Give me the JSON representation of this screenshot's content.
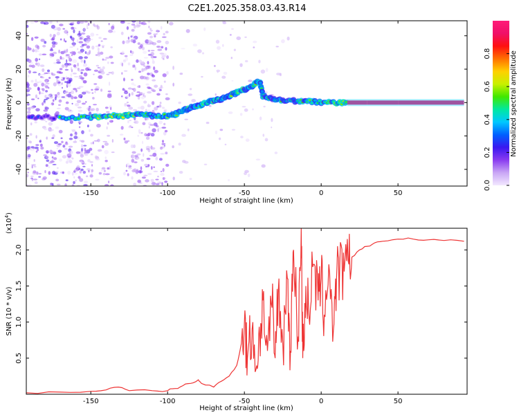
{
  "title": "C2E1.2025.358.03.43.R14",
  "chart_data": [
    {
      "type": "heatmap",
      "xlabel": "Height of straight line (km)",
      "ylabel": "Frequency (Hz)",
      "xlim": [
        -192,
        95
      ],
      "ylim": [
        -50,
        49
      ],
      "xticks": [
        -150,
        -100,
        -50,
        0,
        50
      ],
      "yticks": [
        -40,
        -20,
        0,
        20,
        40
      ],
      "colorbar": {
        "label": "Normalized spectral amplitude",
        "range": [
          0.0,
          1.0
        ],
        "ticks": [
          "0.0",
          "0.2",
          "0.4",
          "0.6",
          "0.8"
        ],
        "ticks_values": [
          0.0,
          0.2,
          0.4,
          0.6,
          0.8
        ],
        "colors": [
          "#f2e8ff",
          "#c9a6f5",
          "#8a3cf0",
          "#3a18f0",
          "#0060ff",
          "#00c8ff",
          "#00e8a0",
          "#40e800",
          "#c8f000",
          "#ffd000",
          "#ff7000",
          "#ff1010",
          "#f01068",
          "#ff1c78"
        ]
      },
      "ridge": {
        "x": [
          -190,
          -170,
          -150,
          -140,
          -130,
          -120,
          -110,
          -100,
          -95,
          -90,
          -85,
          -80,
          -75,
          -70,
          -65,
          -60,
          -55,
          -50,
          -45,
          -40,
          -38,
          -30,
          -20,
          -10,
          0,
          10,
          17,
          30,
          50,
          70,
          93
        ],
        "y": [
          -9,
          -9,
          -9,
          -8,
          -8,
          -7,
          -8,
          -8,
          -7,
          -5,
          -3,
          -2,
          0,
          1,
          2,
          4,
          6,
          8,
          10,
          13,
          4,
          2,
          1,
          1,
          0,
          0,
          0,
          0,
          0,
          0,
          0
        ],
        "amplitude": [
          0.25,
          0.45,
          0.55,
          0.6,
          0.55,
          0.5,
          0.5,
          0.5,
          0.5,
          0.55,
          0.5,
          0.55,
          0.6,
          0.55,
          0.5,
          0.55,
          0.55,
          0.5,
          0.5,
          0.5,
          0.45,
          0.45,
          0.45,
          0.5,
          0.55,
          0.6,
          0.95,
          0.95,
          0.95,
          0.95,
          0.95
        ]
      }
    },
    {
      "type": "line",
      "xlabel": "Height of straight line (km)",
      "ylabel": "SNR (10 * v/v)",
      "yscale_label": "(x10",
      "yscale_exp": "4",
      "xlim": [
        -192,
        95
      ],
      "ylim": [
        0,
        2.3
      ],
      "xticks": [
        -150,
        -100,
        -50,
        0,
        50
      ],
      "yticks": [
        0.5,
        1.0,
        1.5,
        2.0
      ],
      "ytick_labels": [
        "0.5",
        "1.0",
        "1.5",
        "2.0"
      ],
      "color": "#ee3333",
      "x": [
        -192,
        -170,
        -150,
        -140,
        -132,
        -125,
        -110,
        -100,
        -95,
        -90,
        -85,
        -80,
        -78,
        -70,
        -65,
        -60,
        -55,
        -52,
        -50,
        -48,
        -45,
        -42,
        -40,
        -38,
        -35,
        -32,
        -30,
        -28,
        -25,
        -22,
        -20,
        -18,
        -15,
        -13,
        -12,
        -10,
        -8,
        -5,
        -2,
        0,
        2,
        5,
        8,
        10,
        12,
        15,
        18,
        20,
        25,
        30,
        35,
        40,
        50,
        60,
        70,
        80,
        93
      ],
      "y": [
        0.02,
        0.03,
        0.04,
        0.06,
        0.1,
        0.05,
        0.05,
        0.05,
        0.08,
        0.12,
        0.15,
        0.2,
        0.15,
        0.1,
        0.18,
        0.25,
        0.4,
        0.7,
        1.0,
        0.5,
        0.9,
        0.4,
        0.8,
        1.3,
        0.6,
        1.2,
        0.5,
        1.4,
        0.7,
        1.6,
        0.6,
        2.0,
        0.8,
        2.3,
        0.5,
        1.5,
        1.1,
        1.8,
        1.3,
        1.6,
        1.1,
        1.8,
        0.9,
        1.6,
        1.7,
        1.7,
        1.8,
        1.9,
        2.0,
        2.05,
        2.1,
        2.12,
        2.15,
        2.15,
        2.14,
        2.13,
        2.12
      ]
    }
  ]
}
